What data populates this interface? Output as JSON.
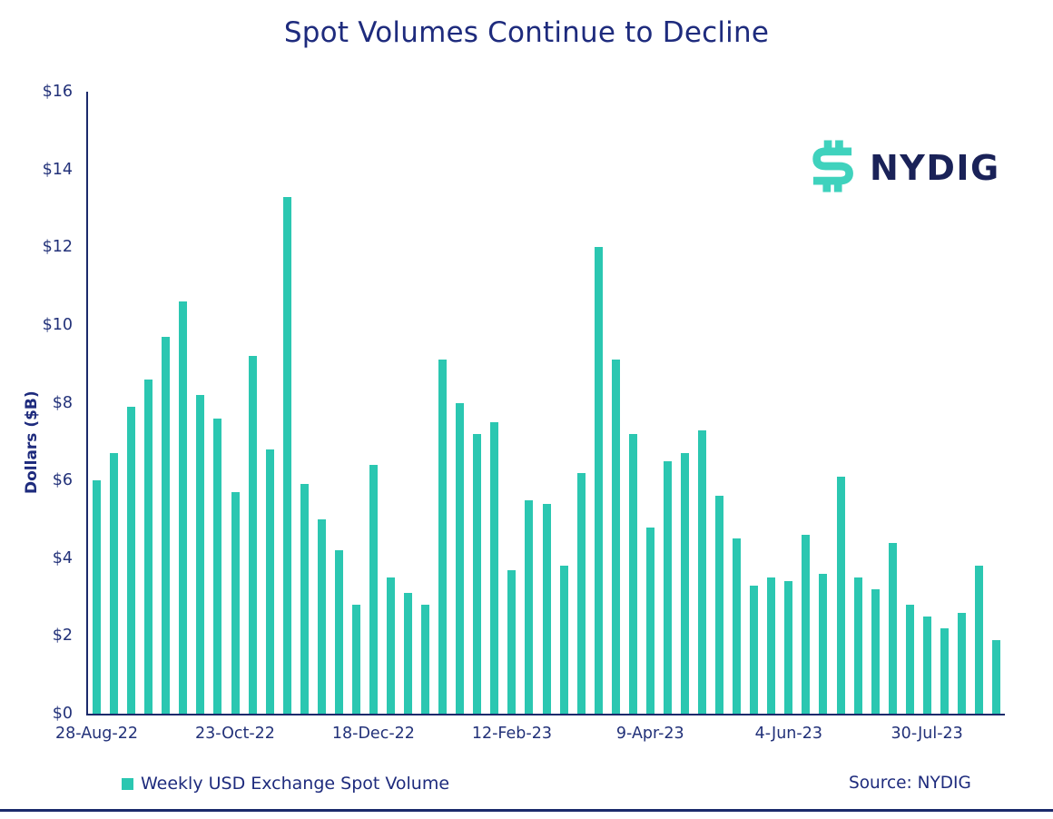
{
  "title": "Spot Volumes Continue to Decline",
  "logo": {
    "text": "NYDIG"
  },
  "legend": {
    "label": "Weekly USD Exchange Spot Volume"
  },
  "source_text": "Source: NYDIG",
  "colors": {
    "navy_text": "#1e2b7d",
    "axis_line": "#1b2a6b",
    "bar_teal": "#2bc7b1",
    "logo_teal": "#3fd2bd",
    "logo_navy": "#1a2258"
  },
  "chart_data": {
    "type": "bar",
    "title": "Spot Volumes Continue to Decline",
    "xlabel": "",
    "ylabel": "Dollars ($B)",
    "ylim": [
      0,
      16
    ],
    "grid": false,
    "legend_position": "bottom-left",
    "series_name": "Weekly USD Exchange Spot Volume",
    "y_tick_labels": [
      "$0",
      "$2",
      "$4",
      "$6",
      "$8",
      "$10",
      "$12",
      "$14",
      "$16"
    ],
    "y_tick_values": [
      0,
      2,
      4,
      6,
      8,
      10,
      12,
      14,
      16
    ],
    "x_tick_labels": [
      "28-Aug-22",
      "23-Oct-22",
      "18-Dec-22",
      "12-Feb-23",
      "9-Apr-23",
      "4-Jun-23",
      "30-Jul-23"
    ],
    "x_tick_indices": [
      0,
      8,
      16,
      24,
      32,
      40,
      48
    ],
    "categories": [
      "28-Aug-22",
      "4-Sep-22",
      "11-Sep-22",
      "18-Sep-22",
      "25-Sep-22",
      "2-Oct-22",
      "9-Oct-22",
      "16-Oct-22",
      "23-Oct-22",
      "30-Oct-22",
      "6-Nov-22",
      "13-Nov-22",
      "20-Nov-22",
      "27-Nov-22",
      "4-Dec-22",
      "11-Dec-22",
      "18-Dec-22",
      "25-Dec-22",
      "1-Jan-23",
      "8-Jan-23",
      "15-Jan-23",
      "22-Jan-23",
      "29-Jan-23",
      "5-Feb-23",
      "12-Feb-23",
      "19-Feb-23",
      "26-Feb-23",
      "5-Mar-23",
      "12-Mar-23",
      "19-Mar-23",
      "26-Mar-23",
      "2-Apr-23",
      "9-Apr-23",
      "16-Apr-23",
      "23-Apr-23",
      "30-Apr-23",
      "7-May-23",
      "14-May-23",
      "21-May-23",
      "28-May-23",
      "4-Jun-23",
      "11-Jun-23",
      "18-Jun-23",
      "25-Jun-23",
      "2-Jul-23",
      "9-Jul-23",
      "16-Jul-23",
      "23-Jul-23",
      "30-Jul-23",
      "6-Aug-23",
      "13-Aug-23",
      "20-Aug-23",
      "27-Aug-23"
    ],
    "values": [
      6.0,
      6.7,
      7.9,
      8.6,
      9.7,
      10.6,
      8.2,
      7.6,
      5.7,
      9.2,
      6.8,
      13.3,
      5.9,
      5.0,
      4.2,
      2.8,
      6.4,
      3.5,
      3.1,
      2.8,
      9.1,
      8.0,
      7.2,
      7.5,
      3.7,
      5.5,
      5.4,
      3.8,
      6.2,
      12.0,
      9.1,
      7.2,
      4.8,
      6.5,
      6.7,
      7.3,
      5.6,
      4.5,
      3.3,
      3.5,
      3.4,
      4.6,
      3.6,
      6.1,
      3.5,
      3.2,
      4.4,
      2.8,
      2.5,
      2.2,
      2.6,
      3.8,
      1.9
    ]
  }
}
